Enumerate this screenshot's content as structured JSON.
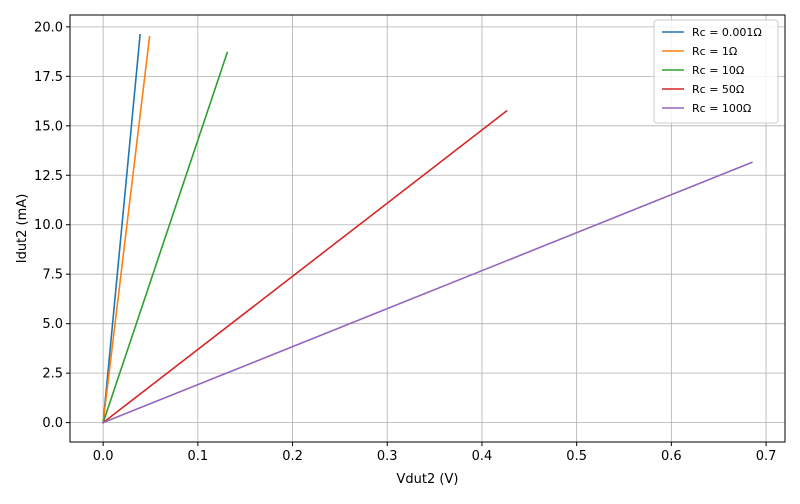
{
  "chart_data": {
    "type": "line",
    "title": "",
    "xlabel": "Vdut2 (V)",
    "ylabel": "Idut2 (mA)",
    "xlim": [
      -0.035,
      0.72
    ],
    "ylim": [
      -0.98,
      20.6
    ],
    "x_ticks": [
      0.0,
      0.1,
      0.2,
      0.3,
      0.4,
      0.5,
      0.6,
      0.7
    ],
    "x_tick_labels": [
      "0.0",
      "0.1",
      "0.2",
      "0.3",
      "0.4",
      "0.5",
      "0.6",
      "0.7"
    ],
    "y_ticks": [
      0.0,
      2.5,
      5.0,
      7.5,
      10.0,
      12.5,
      15.0,
      17.5,
      20.0
    ],
    "y_tick_labels": [
      "0.0",
      "2.5",
      "5.0",
      "7.5",
      "10.0",
      "12.5",
      "15.0",
      "17.5",
      "20.0"
    ],
    "grid": true,
    "legend_position": "top-right",
    "series": [
      {
        "name": "Rc = 0.001Ω",
        "color": "#1f77b4",
        "x": [
          0.0,
          0.039
        ],
        "y": [
          0.0,
          19.6
        ]
      },
      {
        "name": "Rc = 1Ω",
        "color": "#ff7f0e",
        "x": [
          0.0,
          0.049
        ],
        "y": [
          0.0,
          19.5
        ]
      },
      {
        "name": "Rc = 10Ω",
        "color": "#2ca02c",
        "x": [
          0.0,
          0.131
        ],
        "y": [
          0.0,
          18.7
        ]
      },
      {
        "name": "Rc = 50Ω",
        "color": "#d62728",
        "x": [
          0.0,
          0.426
        ],
        "y": [
          0.0,
          15.75
        ]
      },
      {
        "name": "Rc = 100Ω",
        "color": "#9467bd",
        "x": [
          0.0,
          0.685
        ],
        "y": [
          0.0,
          13.15
        ]
      }
    ]
  }
}
